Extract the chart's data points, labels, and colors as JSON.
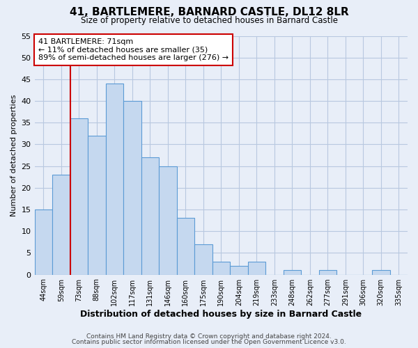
{
  "title": "41, BARTLEMERE, BARNARD CASTLE, DL12 8LR",
  "subtitle": "Size of property relative to detached houses in Barnard Castle",
  "xlabel": "Distribution of detached houses by size in Barnard Castle",
  "ylabel": "Number of detached properties",
  "bar_labels": [
    "44sqm",
    "59sqm",
    "73sqm",
    "88sqm",
    "102sqm",
    "117sqm",
    "131sqm",
    "146sqm",
    "160sqm",
    "175sqm",
    "190sqm",
    "204sqm",
    "219sqm",
    "233sqm",
    "248sqm",
    "262sqm",
    "277sqm",
    "291sqm",
    "306sqm",
    "320sqm",
    "335sqm"
  ],
  "bar_values": [
    15,
    23,
    36,
    32,
    44,
    40,
    27,
    25,
    13,
    7,
    3,
    2,
    3,
    0,
    1,
    0,
    1,
    0,
    0,
    1,
    0
  ],
  "bar_color": "#c5d8ef",
  "bar_edge_color": "#5b9bd5",
  "highlight_index": 2,
  "highlight_color": "#cc0000",
  "ylim": [
    0,
    55
  ],
  "yticks": [
    0,
    5,
    10,
    15,
    20,
    25,
    30,
    35,
    40,
    45,
    50,
    55
  ],
  "annotation_line1": "41 BARTLEMERE: 71sqm",
  "annotation_line2": "← 11% of detached houses are smaller (35)",
  "annotation_line3": "89% of semi-detached houses are larger (276) →",
  "footer1": "Contains HM Land Registry data © Crown copyright and database right 2024.",
  "footer2": "Contains public sector information licensed under the Open Government Licence v3.0.",
  "bg_color": "#e8eef8",
  "plot_bg_color": "#e8eef8",
  "grid_color": "#b8c8e0"
}
